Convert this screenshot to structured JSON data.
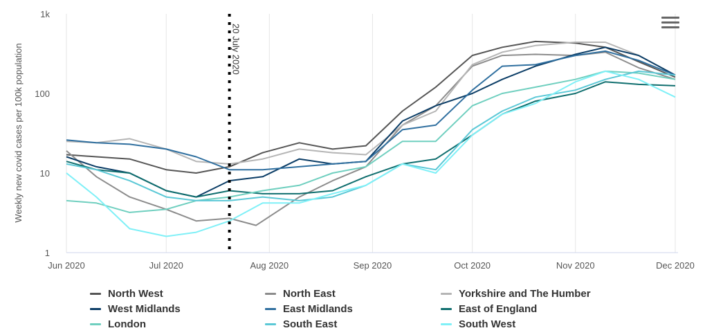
{
  "chart_data": {
    "type": "line",
    "ylabel": "Weekly new covid cases per 100k population",
    "yscale": "log",
    "ylim": [
      1,
      1000
    ],
    "ytick_labels": [
      "1",
      "10",
      "100",
      "1k"
    ],
    "xlim": [
      "2020-06-01",
      "2020-12-01"
    ],
    "xtick_labels": [
      "Jun 2020",
      "Jul 2020",
      "Aug 2020",
      "Sep 2020",
      "Oct 2020",
      "Nov 2020",
      "Dec 2020"
    ],
    "grid": "vertical",
    "legend_position": "bottom",
    "annotations": [
      {
        "x": "2020-07-20",
        "label": "20 July 2020",
        "style": "dotted-vertical-line"
      }
    ],
    "series": [
      {
        "name": "North West",
        "color": "#555555",
        "x": [
          "2020-06-01",
          "2020-06-10",
          "2020-06-20",
          "2020-07-01",
          "2020-07-10",
          "2020-07-20",
          "2020-07-30",
          "2020-08-10",
          "2020-08-20",
          "2020-08-30",
          "2020-09-10",
          "2020-09-20",
          "2020-10-01",
          "2020-10-10",
          "2020-10-20",
          "2020-11-01",
          "2020-11-10",
          "2020-11-20",
          "2020-12-01"
        ],
        "values": [
          17,
          16,
          15,
          11,
          10,
          12,
          18,
          24,
          20,
          22,
          60,
          120,
          300,
          380,
          450,
          430,
          380,
          250,
          160
        ]
      },
      {
        "name": "North East",
        "color": "#8c8c8c",
        "x": [
          "2020-06-01",
          "2020-06-10",
          "2020-06-20",
          "2020-07-01",
          "2020-07-10",
          "2020-07-20",
          "2020-07-28",
          "2020-08-10",
          "2020-08-20",
          "2020-08-30",
          "2020-09-10",
          "2020-09-20",
          "2020-10-01",
          "2020-10-10",
          "2020-10-20",
          "2020-11-01",
          "2020-11-10",
          "2020-11-20",
          "2020-12-01"
        ],
        "values": [
          19,
          9,
          5,
          3.5,
          2.5,
          2.7,
          2.2,
          5,
          8,
          12,
          40,
          70,
          220,
          300,
          310,
          300,
          330,
          210,
          150
        ]
      },
      {
        "name": "Yorkshire and The Humber",
        "color": "#b5b5b5",
        "x": [
          "2020-06-01",
          "2020-06-10",
          "2020-06-20",
          "2020-07-01",
          "2020-07-10",
          "2020-07-20",
          "2020-07-30",
          "2020-08-10",
          "2020-08-20",
          "2020-08-30",
          "2020-09-10",
          "2020-09-20",
          "2020-10-01",
          "2020-10-10",
          "2020-10-20",
          "2020-11-01",
          "2020-11-10",
          "2020-11-20",
          "2020-12-01"
        ],
        "values": [
          25,
          24,
          27,
          20,
          14,
          13,
          15,
          20,
          18,
          17,
          40,
          60,
          230,
          330,
          400,
          440,
          440,
          300,
          170
        ]
      },
      {
        "name": "West Midlands",
        "color": "#0b3d66",
        "x": [
          "2020-06-01",
          "2020-06-10",
          "2020-06-20",
          "2020-07-01",
          "2020-07-10",
          "2020-07-20",
          "2020-07-30",
          "2020-08-10",
          "2020-08-20",
          "2020-08-30",
          "2020-09-10",
          "2020-09-20",
          "2020-10-01",
          "2020-10-10",
          "2020-10-20",
          "2020-11-01",
          "2020-11-10",
          "2020-11-20",
          "2020-12-01"
        ],
        "values": [
          16,
          12,
          10,
          6,
          5,
          8,
          9,
          15,
          13,
          14,
          45,
          70,
          100,
          150,
          220,
          310,
          380,
          300,
          170
        ]
      },
      {
        "name": "East Midlands",
        "color": "#2f6f9f",
        "x": [
          "2020-06-01",
          "2020-06-10",
          "2020-06-20",
          "2020-07-01",
          "2020-07-10",
          "2020-07-20",
          "2020-07-30",
          "2020-08-10",
          "2020-08-20",
          "2020-08-30",
          "2020-09-10",
          "2020-09-20",
          "2020-10-01",
          "2020-10-10",
          "2020-10-20",
          "2020-11-01",
          "2020-11-10",
          "2020-11-20",
          "2020-12-01"
        ],
        "values": [
          26,
          24,
          23,
          20,
          16,
          11,
          11,
          12,
          13,
          14,
          35,
          40,
          110,
          220,
          230,
          300,
          340,
          260,
          170
        ]
      },
      {
        "name": "East of England",
        "color": "#0f6e6e",
        "x": [
          "2020-06-01",
          "2020-06-10",
          "2020-06-20",
          "2020-07-01",
          "2020-07-10",
          "2020-07-20",
          "2020-07-30",
          "2020-08-10",
          "2020-08-20",
          "2020-08-30",
          "2020-09-10",
          "2020-09-20",
          "2020-10-01",
          "2020-10-10",
          "2020-10-20",
          "2020-11-01",
          "2020-11-10",
          "2020-11-20",
          "2020-12-01"
        ],
        "values": [
          14,
          11,
          10,
          6,
          5,
          6,
          5.5,
          5.5,
          6,
          9,
          13,
          15,
          30,
          55,
          80,
          100,
          140,
          130,
          125
        ]
      },
      {
        "name": "London",
        "color": "#6fcfbf",
        "x": [
          "2020-06-01",
          "2020-06-10",
          "2020-06-20",
          "2020-07-01",
          "2020-07-10",
          "2020-07-20",
          "2020-07-30",
          "2020-08-10",
          "2020-08-20",
          "2020-08-30",
          "2020-09-10",
          "2020-09-20",
          "2020-10-01",
          "2020-10-10",
          "2020-10-20",
          "2020-11-01",
          "2020-11-10",
          "2020-11-20",
          "2020-12-01"
        ],
        "values": [
          4.5,
          4.2,
          3.2,
          3.5,
          4.5,
          5,
          6,
          7,
          10,
          12,
          25,
          25,
          70,
          100,
          120,
          150,
          190,
          180,
          150
        ]
      },
      {
        "name": "South East",
        "color": "#5bc8d6",
        "x": [
          "2020-06-01",
          "2020-06-10",
          "2020-06-20",
          "2020-07-01",
          "2020-07-10",
          "2020-07-20",
          "2020-07-30",
          "2020-08-10",
          "2020-08-20",
          "2020-08-30",
          "2020-09-10",
          "2020-09-20",
          "2020-10-01",
          "2020-10-10",
          "2020-10-20",
          "2020-11-01",
          "2020-11-10",
          "2020-11-20",
          "2020-12-01"
        ],
        "values": [
          13,
          11,
          8,
          5,
          4.5,
          4.5,
          5,
          4.5,
          5,
          7,
          13,
          11,
          35,
          60,
          90,
          110,
          150,
          190,
          170
        ]
      },
      {
        "name": "South West",
        "color": "#7ff0f7",
        "x": [
          "2020-06-01",
          "2020-06-10",
          "2020-06-20",
          "2020-07-01",
          "2020-07-10",
          "2020-07-20",
          "2020-07-30",
          "2020-08-10",
          "2020-08-20",
          "2020-08-30",
          "2020-09-10",
          "2020-09-20",
          "2020-10-01",
          "2020-10-10",
          "2020-10-20",
          "2020-11-01",
          "2020-11-10",
          "2020-11-20",
          "2020-12-01"
        ],
        "values": [
          10,
          5,
          2,
          1.6,
          1.8,
          2.5,
          4.2,
          4.2,
          5.5,
          7,
          13,
          10,
          30,
          55,
          75,
          140,
          190,
          150,
          90
        ]
      }
    ]
  }
}
